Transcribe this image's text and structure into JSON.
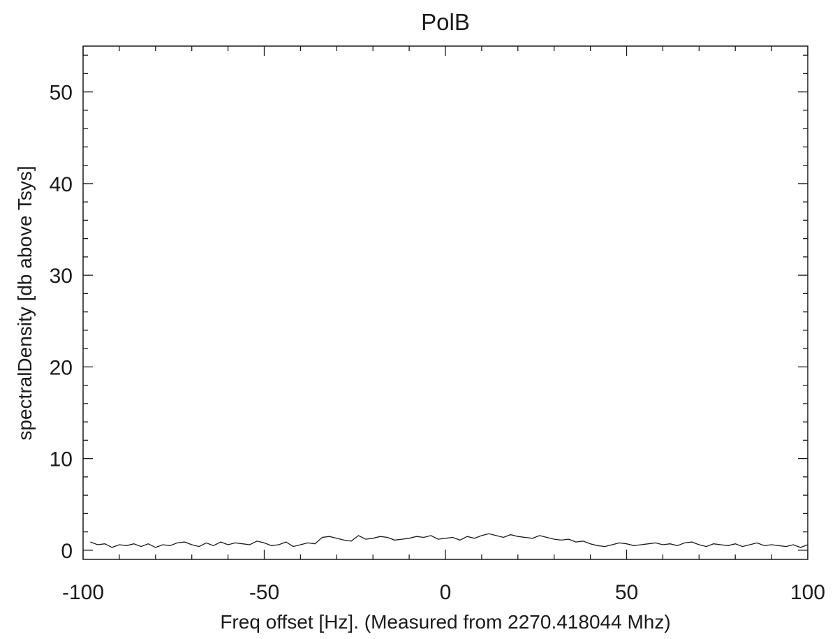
{
  "chart_data": {
    "type": "line",
    "title": "PolB",
    "xlabel": "Freq offset [Hz]. (Measured from 2270.418044 Mhz)",
    "ylabel": "spectralDensity [db above Tsys]",
    "xlim": [
      -100,
      100
    ],
    "ylim": [
      -1,
      55
    ],
    "xticks": [
      -100,
      -50,
      0,
      50,
      100
    ],
    "yticks": [
      0,
      10,
      20,
      30,
      40,
      50
    ],
    "grid": false,
    "series": [
      {
        "x": [
          -98,
          -96,
          -94,
          -92,
          -90,
          -88,
          -86,
          -84,
          -82,
          -80,
          -78,
          -76,
          -74,
          -72,
          -70,
          -68,
          -66,
          -64,
          -62,
          -60,
          -58,
          -56,
          -54,
          -52,
          -50,
          -48,
          -46,
          -44,
          -42,
          -40,
          -38,
          -36,
          -34,
          -32,
          -30,
          -28,
          -26,
          -24,
          -22,
          -20,
          -18,
          -16,
          -14,
          -12,
          -10,
          -8,
          -6,
          -4,
          -2,
          0,
          2,
          4,
          6,
          8,
          10,
          12,
          14,
          16,
          18,
          20,
          22,
          24,
          26,
          28,
          30,
          32,
          34,
          36,
          38,
          40,
          42,
          44,
          46,
          48,
          50,
          52,
          54,
          56,
          58,
          60,
          62,
          64,
          66,
          68,
          70,
          72,
          74,
          76,
          78,
          80,
          82,
          84,
          86,
          88,
          90,
          92,
          94,
          96,
          98,
          100
        ],
        "y": [
          0.9,
          0.6,
          0.7,
          0.3,
          0.6,
          0.5,
          0.7,
          0.4,
          0.7,
          0.3,
          0.6,
          0.5,
          0.8,
          0.9,
          0.6,
          0.4,
          0.8,
          0.5,
          0.9,
          0.6,
          0.8,
          0.7,
          0.6,
          1.0,
          0.8,
          0.5,
          0.6,
          0.9,
          0.4,
          0.6,
          0.8,
          0.7,
          1.4,
          1.5,
          1.3,
          1.1,
          1.0,
          1.6,
          1.2,
          1.3,
          1.5,
          1.4,
          1.1,
          1.2,
          1.3,
          1.5,
          1.4,
          1.6,
          1.2,
          1.3,
          1.4,
          1.1,
          1.5,
          1.3,
          1.6,
          1.8,
          1.6,
          1.4,
          1.7,
          1.5,
          1.4,
          1.3,
          1.6,
          1.4,
          1.2,
          1.1,
          1.2,
          0.9,
          1.0,
          0.7,
          0.5,
          0.4,
          0.6,
          0.8,
          0.7,
          0.5,
          0.6,
          0.7,
          0.8,
          0.6,
          0.7,
          0.5,
          0.8,
          0.9,
          0.6,
          0.4,
          0.7,
          0.6,
          0.5,
          0.7,
          0.4,
          0.6,
          0.8,
          0.5,
          0.6,
          0.5,
          0.4,
          0.6,
          0.3,
          0.6
        ]
      }
    ]
  }
}
